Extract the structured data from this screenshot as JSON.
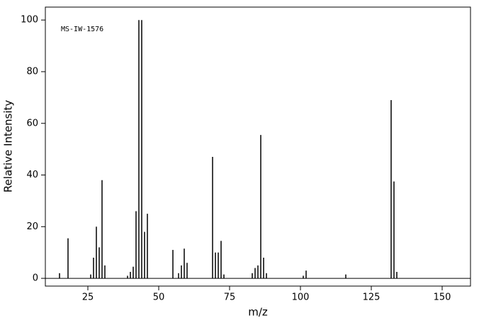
{
  "chart_data": {
    "type": "stick",
    "annotation": "MS-IW-1576",
    "xlabel": "m/z",
    "ylabel": "Relative Intensity",
    "x": [
      15,
      18,
      26,
      27,
      28,
      29,
      30,
      31,
      39,
      40,
      41,
      42,
      43,
      44,
      45,
      46,
      55,
      57,
      58,
      59,
      60,
      69,
      70,
      71,
      72,
      73,
      83,
      84,
      85,
      86,
      87,
      88,
      101,
      102,
      116,
      132,
      133,
      134
    ],
    "values": [
      2,
      15.5,
      1.5,
      8,
      20,
      12,
      38,
      5,
      1,
      2.5,
      4.5,
      26,
      100,
      100,
      18,
      25,
      11,
      2,
      5,
      11.5,
      6,
      47,
      10,
      10,
      14.5,
      1.5,
      2,
      4,
      5,
      55.5,
      8,
      2,
      1,
      3,
      1.5,
      69,
      37.5,
      2.5
    ],
    "color": "#000000",
    "xlim": [
      10,
      160
    ],
    "ylim": [
      -3,
      105
    ],
    "xticks": [
      25,
      50,
      75,
      100,
      125,
      150
    ],
    "yticks": [
      0,
      20,
      40,
      60,
      80,
      100
    ]
  }
}
